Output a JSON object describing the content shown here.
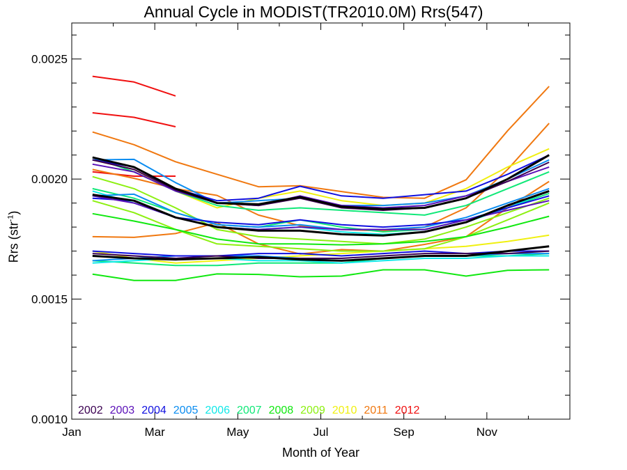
{
  "chart_data": {
    "type": "line",
    "title": "Annual Cycle in MODIST(TR2010.0M) Rrs(547)",
    "xlabel": "Month of Year",
    "ylabel_main": "Rrs (str",
    "ylabel_sup": "-1",
    "ylabel_end": ")",
    "x_ticks": [
      {
        "label": "Jan",
        "month": 0.5
      },
      {
        "label": "Mar",
        "month": 2.5
      },
      {
        "label": "May",
        "month": 4.5
      },
      {
        "label": "Jul",
        "month": 6.5
      },
      {
        "label": "Sep",
        "month": 8.5
      },
      {
        "label": "Nov",
        "month": 10.5
      }
    ],
    "y_ticks": [
      {
        "label": "0.0010",
        "value": 0.001
      },
      {
        "label": "0.0015",
        "value": 0.0015
      },
      {
        "label": "0.0020",
        "value": 0.002
      },
      {
        "label": "0.0025",
        "value": 0.0025
      }
    ],
    "xlim": [
      0.5,
      12.5
    ],
    "ylim": [
      0.001,
      0.00265
    ],
    "legend": [
      {
        "name": "2002",
        "color": "#3a0050"
      },
      {
        "name": "2003",
        "color": "#5a10b8"
      },
      {
        "name": "2004",
        "color": "#1010e0"
      },
      {
        "name": "2005",
        "color": "#0a8cf0"
      },
      {
        "name": "2006",
        "color": "#10e8e8"
      },
      {
        "name": "2007",
        "color": "#10e878"
      },
      {
        "name": "2008",
        "color": "#10e810"
      },
      {
        "name": "2009",
        "color": "#8cf010"
      },
      {
        "name": "2010",
        "color": "#f0f010"
      },
      {
        "name": "2011",
        "color": "#f07810"
      },
      {
        "name": "2012",
        "color": "#f01010"
      }
    ],
    "series": [
      {
        "color": "#f01010",
        "x": [
          1,
          2,
          3
        ],
        "values": [
          0.002428,
          0.002404,
          0.002346
        ]
      },
      {
        "color": "#f01010",
        "x": [
          1,
          2,
          3
        ],
        "values": [
          0.002276,
          0.002257,
          0.002218
        ]
      },
      {
        "color": "#f01010",
        "x": [
          1,
          2,
          3
        ],
        "values": [
          0.00203,
          0.002012,
          0.002012
        ]
      },
      {
        "color": "#f07810",
        "x": [
          1,
          2,
          3,
          4,
          5,
          6,
          7,
          8,
          9,
          10,
          11,
          12
        ],
        "values": [
          0.002196,
          0.002143,
          0.002072,
          0.00202,
          0.001968,
          0.001972,
          0.001948,
          0.001924,
          0.00192,
          0.001997,
          0.002201,
          0.002386
        ]
      },
      {
        "color": "#f07810",
        "x": [
          1,
          2,
          3,
          4,
          5,
          6,
          7,
          8,
          9,
          10,
          11,
          12
        ],
        "values": [
          0.00204,
          0.002003,
          0.00196,
          0.001932,
          0.00185,
          0.001806,
          0.00179,
          0.001784,
          0.0018,
          0.00188,
          0.00204,
          0.002232
        ]
      },
      {
        "color": "#f07810",
        "x": [
          1,
          2,
          3,
          4,
          5,
          6,
          7,
          8,
          9,
          10,
          11,
          12
        ],
        "values": [
          0.00176,
          0.001757,
          0.001773,
          0.001818,
          0.00173,
          0.001688,
          0.001706,
          0.0017,
          0.001728,
          0.00176,
          0.00188,
          0.00199
        ]
      },
      {
        "color": "#f0f010",
        "x": [
          1,
          2,
          3,
          4,
          5,
          6,
          7,
          8,
          9,
          10,
          11,
          12
        ],
        "values": [
          0.00208,
          0.00204,
          0.00195,
          0.00188,
          0.00192,
          0.00195,
          0.00191,
          0.00189,
          0.0019,
          0.00196,
          0.00205,
          0.002126
        ]
      },
      {
        "color": "#f0f010",
        "x": [
          1,
          2,
          3,
          4,
          5,
          6,
          7,
          8,
          9,
          10,
          11,
          12
        ],
        "values": [
          0.0017,
          0.00167,
          0.00165,
          0.00166,
          0.00167,
          0.00168,
          0.00169,
          0.0017,
          0.00171,
          0.00172,
          0.00174,
          0.001766
        ]
      },
      {
        "color": "#8cf010",
        "x": [
          1,
          2,
          3,
          4,
          5,
          6,
          7,
          8,
          9,
          10,
          11,
          12
        ],
        "values": [
          0.00201,
          0.00196,
          0.00188,
          0.00179,
          0.00176,
          0.00175,
          0.00174,
          0.00173,
          0.00175,
          0.0018,
          0.00186,
          0.00192
        ]
      },
      {
        "color": "#8cf010",
        "x": [
          1,
          2,
          3,
          4,
          5,
          6,
          7,
          8,
          9,
          10,
          11,
          12
        ],
        "values": [
          0.00191,
          0.00186,
          0.00179,
          0.00173,
          0.00172,
          0.00171,
          0.0017,
          0.0017,
          0.00171,
          0.00176,
          0.00183,
          0.0019
        ]
      },
      {
        "color": "#10e810",
        "x": [
          1,
          2,
          3,
          4,
          5,
          6,
          7,
          8,
          9,
          10,
          11,
          12
        ],
        "values": [
          0.001604,
          0.001578,
          0.001578,
          0.001605,
          0.001603,
          0.001593,
          0.001596,
          0.001622,
          0.001622,
          0.001596,
          0.00162,
          0.001622
        ]
      },
      {
        "color": "#10e810",
        "x": [
          1,
          2,
          3,
          4,
          5,
          6,
          7,
          8,
          9,
          10,
          11,
          12
        ],
        "values": [
          0.001856,
          0.001825,
          0.00179,
          0.00175,
          0.00173,
          0.00173,
          0.001726,
          0.00173,
          0.00174,
          0.00176,
          0.0018,
          0.001845
        ]
      },
      {
        "color": "#10e878",
        "x": [
          1,
          2,
          3,
          4,
          5,
          6,
          7,
          8,
          9,
          10,
          11,
          12
        ],
        "values": [
          0.00209,
          0.00203,
          0.00195,
          0.00189,
          0.00187,
          0.00188,
          0.00187,
          0.00186,
          0.00185,
          0.00189,
          0.00196,
          0.00203
        ]
      },
      {
        "color": "#10e878",
        "x": [
          1,
          2,
          3,
          4,
          5,
          6,
          7,
          8,
          9,
          10,
          11,
          12
        ],
        "values": [
          0.00196,
          0.00192,
          0.00186,
          0.00181,
          0.0018,
          0.00183,
          0.0018,
          0.00178,
          0.00179,
          0.00183,
          0.00188,
          0.00194
        ]
      },
      {
        "color": "#10e878",
        "x": [
          1,
          2,
          3,
          4,
          5,
          6,
          7,
          8,
          9,
          10,
          11,
          12
        ],
        "values": [
          0.00166,
          0.00165,
          0.00164,
          0.00164,
          0.00165,
          0.00165,
          0.00165,
          0.00167,
          0.00168,
          0.00168,
          0.00168,
          0.00169
        ]
      },
      {
        "color": "#10e8e8",
        "x": [
          1,
          2,
          3,
          4,
          5,
          6,
          7,
          8,
          9,
          10,
          11,
          12
        ],
        "values": [
          0.00195,
          0.0019,
          0.00184,
          0.0018,
          0.00179,
          0.0018,
          0.00178,
          0.00177,
          0.00178,
          0.00182,
          0.00188,
          0.00195
        ]
      },
      {
        "color": "#10e8e8",
        "x": [
          1,
          2,
          3,
          4,
          5,
          6,
          7,
          8,
          9,
          10,
          11,
          12
        ],
        "values": [
          0.00165,
          0.00166,
          0.00167,
          0.00167,
          0.00166,
          0.00166,
          0.00165,
          0.00166,
          0.00167,
          0.00167,
          0.00168,
          0.00168
        ]
      },
      {
        "color": "#0a8cf0",
        "x": [
          1,
          2,
          3,
          4,
          5,
          6,
          7,
          8,
          9,
          10,
          11,
          12
        ],
        "values": [
          0.00208,
          0.002082,
          0.001985,
          0.0019,
          0.00191,
          0.00192,
          0.00189,
          0.00189,
          0.0019,
          0.00193,
          0.002,
          0.00208
        ]
      },
      {
        "color": "#0a8cf0",
        "x": [
          1,
          2,
          3,
          4,
          5,
          6,
          7,
          8,
          9,
          10,
          11,
          12
        ],
        "values": [
          0.00193,
          0.001937,
          0.00186,
          0.00181,
          0.0018,
          0.00181,
          0.00179,
          0.00179,
          0.0018,
          0.00184,
          0.0019,
          0.00196
        ]
      },
      {
        "color": "#0a8cf0",
        "x": [
          1,
          2,
          3,
          4,
          5,
          6,
          7,
          8,
          9,
          10,
          11,
          12
        ],
        "values": [
          0.00166,
          0.00167,
          0.00168,
          0.00168,
          0.00168,
          0.00167,
          0.00166,
          0.00167,
          0.00168,
          0.00168,
          0.00169,
          0.00169
        ]
      },
      {
        "color": "#1010e0",
        "x": [
          1,
          2,
          3,
          4,
          5,
          6,
          7,
          8,
          9,
          10,
          11,
          12
        ],
        "values": [
          0.00208,
          0.00205,
          0.00196,
          0.00191,
          0.00192,
          0.00197,
          0.00193,
          0.00192,
          0.001935,
          0.00195,
          0.00202,
          0.0021
        ]
      },
      {
        "color": "#1010e0",
        "x": [
          1,
          2,
          3,
          4,
          5,
          6,
          7,
          8,
          9,
          10,
          11,
          12
        ],
        "values": [
          0.00192,
          0.00191,
          0.00184,
          0.00182,
          0.00181,
          0.00183,
          0.00181,
          0.0018,
          0.00181,
          0.00183,
          0.00188,
          0.00193
        ]
      },
      {
        "color": "#1010e0",
        "x": [
          1,
          2,
          3,
          4,
          5,
          6,
          7,
          8,
          9,
          10,
          11,
          12
        ],
        "values": [
          0.0017,
          0.00169,
          0.00168,
          0.00168,
          0.00169,
          0.00169,
          0.00168,
          0.00169,
          0.0017,
          0.00169,
          0.0017,
          0.0017
        ]
      },
      {
        "color": "#5a10b8",
        "x": [
          1,
          2,
          3,
          4,
          5,
          6,
          7,
          8,
          9,
          10,
          11,
          12
        ],
        "values": [
          0.002062,
          0.00203,
          0.00195,
          0.0019,
          0.00189,
          0.00193,
          0.00189,
          0.00188,
          0.00189,
          0.00193,
          0.00199,
          0.00205
        ]
      },
      {
        "color": "#5a10b8",
        "x": [
          1,
          2,
          3,
          4,
          5,
          6,
          7,
          8,
          9,
          10,
          11,
          12
        ],
        "values": [
          0.00193,
          0.0019,
          0.00184,
          0.0018,
          0.00179,
          0.0018,
          0.00179,
          0.00179,
          0.00179,
          0.00183,
          0.00187,
          0.00191
        ]
      },
      {
        "color": "#3a0050",
        "x": [
          1,
          2,
          3,
          4,
          5,
          6,
          7,
          8,
          9,
          10,
          11,
          12
        ],
        "values": [
          0.00208,
          0.00204,
          0.001955,
          0.0019,
          0.00189,
          0.00192,
          0.00188,
          0.00187,
          0.00188,
          0.00192,
          0.00199,
          0.00207
        ]
      },
      {
        "color": "#3a0050",
        "x": [
          1,
          2,
          3,
          4,
          5,
          6,
          7,
          8,
          9,
          10,
          11,
          12
        ],
        "values": [
          0.00169,
          0.00168,
          0.00167,
          0.00168,
          0.00167,
          0.00167,
          0.00167,
          0.00168,
          0.00169,
          0.00169,
          0.00169,
          0.0017
        ]
      },
      {
        "color": "#000000",
        "bold": true,
        "x": [
          1,
          2,
          3,
          4,
          5,
          6,
          7,
          8,
          9,
          10,
          11,
          12
        ],
        "values": [
          0.00209,
          0.00205,
          0.00196,
          0.0019,
          0.001895,
          0.001925,
          0.001885,
          0.001875,
          0.00188,
          0.00192,
          0.002,
          0.0021
        ]
      },
      {
        "color": "#000000",
        "bold": true,
        "x": [
          1,
          2,
          3,
          4,
          5,
          6,
          7,
          8,
          9,
          10,
          11,
          12
        ],
        "values": [
          0.001935,
          0.00191,
          0.00184,
          0.0018,
          0.001785,
          0.001785,
          0.00177,
          0.001765,
          0.00178,
          0.00182,
          0.00189,
          0.00195
        ]
      },
      {
        "color": "#000000",
        "bold": true,
        "x": [
          1,
          2,
          3,
          4,
          5,
          6,
          7,
          8,
          9,
          10,
          11,
          12
        ],
        "values": [
          0.00168,
          0.00167,
          0.001665,
          0.00167,
          0.001675,
          0.001665,
          0.00166,
          0.00167,
          0.00168,
          0.00168,
          0.0017,
          0.00172
        ]
      }
    ],
    "grid": false
  }
}
